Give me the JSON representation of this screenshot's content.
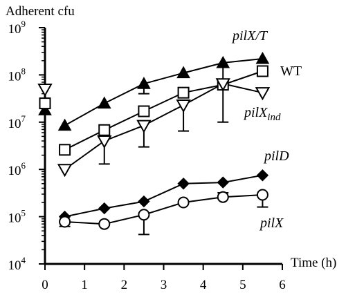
{
  "chart_data": {
    "type": "line",
    "ylabel": "Adherent cfu",
    "xlabel": "Time (h)",
    "xlim": [
      0,
      6
    ],
    "yscale": "log",
    "ylim": [
      10000,
      1000000000
    ],
    "x_ticks": [
      "0",
      "1",
      "2",
      "3",
      "4",
      "5",
      "6"
    ],
    "y_tick_mantissa": "10",
    "y_tick_exponents": [
      "4",
      "5",
      "6",
      "7",
      "8",
      "9"
    ],
    "grid": false,
    "legend": "inline labels",
    "series": [
      {
        "name": "pilX/T",
        "marker": "filled-triangle-up",
        "x": [
          0,
          0.5,
          1.5,
          2.5,
          3.5,
          4.5,
          5.5
        ],
        "y": [
          18000000,
          8500000,
          25000000,
          65000000,
          110000000,
          180000000,
          220000000
        ],
        "error_minus": [
          null,
          null,
          null,
          40000000,
          null,
          60000000,
          null
        ]
      },
      {
        "name": "WT",
        "marker": "open-square",
        "x": [
          0,
          0.5,
          1.5,
          2.5,
          3.5,
          4.5,
          5.5
        ],
        "y": [
          25000000,
          2600000,
          6800000,
          17000000,
          42000000,
          62000000,
          120000000
        ],
        "error_minus": [
          null,
          null,
          null,
          null,
          null,
          null,
          null
        ]
      },
      {
        "name": "pilXind",
        "name_main": "pilX",
        "name_sub": "ind",
        "marker": "open-triangle-down",
        "x": [
          0,
          0.5,
          1.5,
          2.5,
          3.5,
          4.5,
          5.5
        ],
        "y": [
          50000000,
          1000000,
          4000000,
          8500000,
          23000000,
          65000000,
          42000000
        ],
        "error_minus": [
          null,
          null,
          1300000,
          3000000,
          6500000,
          10000000,
          null
        ]
      },
      {
        "name": "pilD",
        "marker": "filled-diamond",
        "x": [
          0.5,
          1.5,
          2.5,
          3.5,
          4.5,
          5.5
        ],
        "y": [
          100000,
          150000,
          210000,
          500000,
          530000,
          750000
        ],
        "error_minus": [
          null,
          null,
          null,
          null,
          null,
          null
        ]
      },
      {
        "name": "pilX",
        "marker": "open-circle",
        "x": [
          0.5,
          1.5,
          2.5,
          3.5,
          4.5,
          5.5
        ],
        "y": [
          78000,
          70000,
          110000,
          200000,
          260000,
          290000
        ],
        "error_minus": [
          62000,
          null,
          42000,
          null,
          null,
          160000
        ],
        "error_plus": [
          null,
          null,
          null,
          null,
          320000,
          null
        ]
      }
    ]
  },
  "colors": {
    "ink": "#000000",
    "background": "#ffffff"
  }
}
